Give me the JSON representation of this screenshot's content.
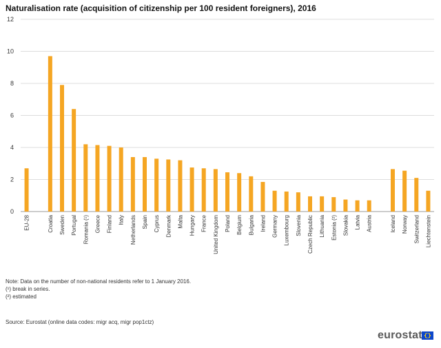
{
  "title": "Naturalisation rate (acquisition of citizenship per 100 resident foreigners), 2016",
  "notes": [
    "Note:  Data on the number of non-national residents refer to 1 January 2016.",
    "(¹) break in series.",
    "(²) estimated"
  ],
  "source": "Source: Eurostat (online data codes: migr acq, migr pop1ctz)",
  "brand": "eurostat",
  "colors": {
    "bar": "#f5a623",
    "grid": "#dcdcdc",
    "axis": "#999999"
  },
  "chart_data": {
    "type": "bar",
    "title": "Naturalisation rate (acquisition of citizenship per 100 resident foreigners), 2016",
    "xlabel": "",
    "ylabel": "",
    "ylim": [
      0,
      12
    ],
    "yticks": [
      "0",
      "2",
      "4",
      "6",
      "8",
      "10",
      "12"
    ],
    "grid": true,
    "legend": "none",
    "categories": [
      "EU-28",
      "",
      "Croatia",
      "Sweden",
      "Portugal",
      "Romania (¹)",
      "Greece",
      "Finland",
      "Italy",
      "Netherlands",
      "Spain",
      "Cyprus",
      "Denmark",
      "Malta",
      "Hungary",
      "France",
      "United Kingdom",
      "Poland",
      "Belgium",
      "Bulgaria",
      "Ireland",
      "Germany",
      "Luxembourg",
      "Slovenia",
      "Czech Republic",
      "Lithuania",
      "Estonia (²)",
      "Slovakia",
      "Latvia",
      "Austria",
      "",
      "Iceland",
      "Norway",
      "Switzerland",
      "Liechtenstein"
    ],
    "values": [
      2.7,
      null,
      9.7,
      7.9,
      6.4,
      4.2,
      4.15,
      4.1,
      4.0,
      3.4,
      3.4,
      3.3,
      3.25,
      3.2,
      2.75,
      2.7,
      2.65,
      2.45,
      2.4,
      2.2,
      1.85,
      1.3,
      1.25,
      1.2,
      0.95,
      0.95,
      0.9,
      0.75,
      0.7,
      0.7,
      null,
      2.65,
      2.55,
      2.1,
      1.3
    ]
  }
}
